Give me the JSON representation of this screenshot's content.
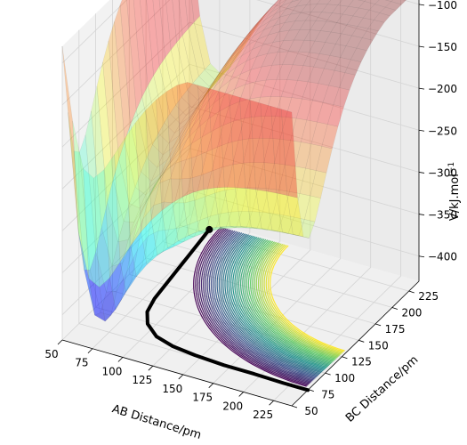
{
  "chart_data": {
    "type": "surface3d",
    "title": "",
    "x_axis": {
      "label": "AB Distance/pm",
      "ticks": [
        "50",
        "75",
        "100",
        "125",
        "150",
        "175",
        "200",
        "225"
      ],
      "range": [
        50,
        240
      ]
    },
    "y_axis": {
      "label": "BC Distance/pm",
      "ticks": [
        "50",
        "75",
        "100",
        "125",
        "150",
        "175",
        "200",
        "225"
      ],
      "range": [
        50,
        240
      ]
    },
    "z_axis": {
      "label": "V/kJ.mol",
      "label_superscript": "−1",
      "ticks": [
        "−100",
        "−150",
        "−200",
        "−250",
        "−300",
        "−350",
        "−400"
      ],
      "range": [
        -430,
        -80
      ]
    },
    "surface": {
      "colormap": "jet",
      "alpha": 0.3,
      "plateau_value": -100,
      "well_minimum": -430
    },
    "contours": {
      "colormap": "viridis",
      "count": 40,
      "placement": "floor"
    },
    "trajectory": {
      "color": "#000000",
      "points": [
        [
          72,
          230
        ],
        [
          74,
          210
        ],
        [
          76,
          190
        ],
        [
          78,
          170
        ],
        [
          80,
          150
        ],
        [
          82,
          130
        ],
        [
          86,
          112
        ],
        [
          94,
          98
        ],
        [
          108,
          86
        ],
        [
          125,
          80
        ],
        [
          145,
          77
        ],
        [
          170,
          75
        ],
        [
          195,
          75
        ],
        [
          220,
          74
        ],
        [
          240,
          74
        ]
      ]
    },
    "grid": true,
    "legend": "none"
  }
}
